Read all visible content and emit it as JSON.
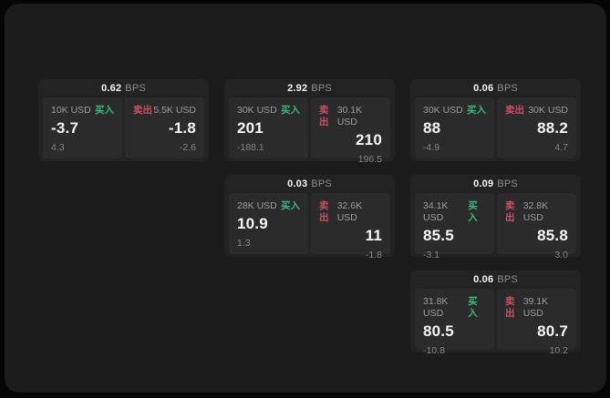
{
  "labels": {
    "bps_unit": "BPS",
    "buy": "买入",
    "sell": "卖出"
  },
  "colors": {
    "background": "#060606",
    "panel": "#1c1c1d",
    "card": "#232324",
    "subcard": "#2b2b2c",
    "buy_green": "#3cb878",
    "sell_red": "#cb5066",
    "text_primary": "#f5f5f5",
    "text_secondary": "#9d9d9d"
  },
  "cards": [
    {
      "spread": "0.62",
      "buy": {
        "size": "10K USD",
        "price": "-3.7",
        "change": "4.3"
      },
      "sell": {
        "size": "5.5K USD",
        "price": "-1.8",
        "change": "-2.6"
      }
    },
    {
      "spread": "2.92",
      "buy": {
        "size": "30K USD",
        "price": "201",
        "change": "-188.1"
      },
      "sell": {
        "size": "30.1K USD",
        "price": "210",
        "change": "196.5"
      }
    },
    {
      "spread": "0.06",
      "buy": {
        "size": "30K USD",
        "price": "88",
        "change": "-4.9"
      },
      "sell": {
        "size": "30K USD",
        "price": "88.2",
        "change": "4.7"
      }
    },
    {
      "spread": "0.03",
      "buy": {
        "size": "28K USD",
        "price": "10.9",
        "change": "1.3"
      },
      "sell": {
        "size": "32.6K USD",
        "price": "11",
        "change": "-1.8"
      }
    },
    {
      "spread": "0.09",
      "buy": {
        "size": "34.1K USD",
        "price": "85.5",
        "change": "-3.1"
      },
      "sell": {
        "size": "32.8K USD",
        "price": "85.8",
        "change": "3.0"
      }
    },
    {
      "spread": "0.06",
      "buy": {
        "size": "31.8K USD",
        "price": "80.5",
        "change": "-10.8"
      },
      "sell": {
        "size": "39.1K USD",
        "price": "80.7",
        "change": "10.2"
      }
    }
  ]
}
